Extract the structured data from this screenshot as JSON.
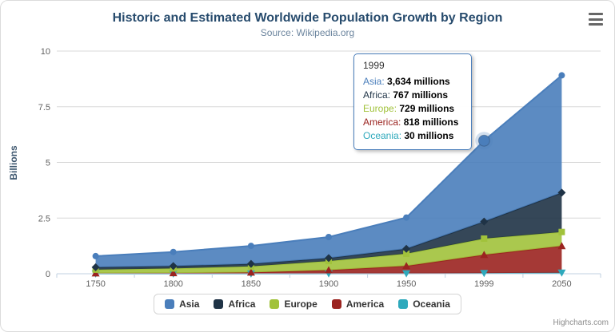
{
  "credits": "Highcharts.com",
  "chart_data": {
    "type": "area",
    "stacked": true,
    "title": "Historic and Estimated Worldwide Population Growth by Region",
    "subtitle": "Source: Wikipedia.org",
    "categories": [
      "1750",
      "1800",
      "1850",
      "1900",
      "1950",
      "1999",
      "2050"
    ],
    "series": [
      {
        "name": "Asia",
        "color": "#4A7EBB",
        "marker": "circle",
        "values": [
          502,
          635,
          809,
          947,
          1402,
          3634,
          5268
        ]
      },
      {
        "name": "Africa",
        "color": "#1F3346",
        "marker": "diamond",
        "values": [
          106,
          107,
          111,
          133,
          221,
          767,
          1766
        ]
      },
      {
        "name": "Europe",
        "color": "#A1C23B",
        "marker": "square",
        "values": [
          163,
          203,
          276,
          408,
          547,
          729,
          628
        ]
      },
      {
        "name": "America",
        "color": "#9B2420",
        "marker": "triangle",
        "values": [
          18,
          31,
          54,
          156,
          339,
          818,
          1201
        ]
      },
      {
        "name": "Oceania",
        "color": "#2EA9BC",
        "marker": "triangle-down",
        "values": [
          2,
          2,
          2,
          6,
          13,
          30,
          46
        ]
      }
    ],
    "unit": "millions",
    "ylabel": "Billions",
    "yticks": [
      0,
      2.5,
      5,
      7.5,
      10
    ],
    "ylim": [
      0,
      10
    ],
    "grid": true,
    "legend_position": "bottom"
  },
  "tooltip": {
    "category": "1999",
    "rows": [
      {
        "series": "Asia",
        "value": "3,634 millions"
      },
      {
        "series": "Africa",
        "value": "767 millions"
      },
      {
        "series": "Europe",
        "value": "729 millions"
      },
      {
        "series": "America",
        "value": "818 millions"
      },
      {
        "series": "Oceania",
        "value": "30 millions"
      }
    ]
  },
  "hover": {
    "series": "Asia",
    "category": "1999"
  }
}
